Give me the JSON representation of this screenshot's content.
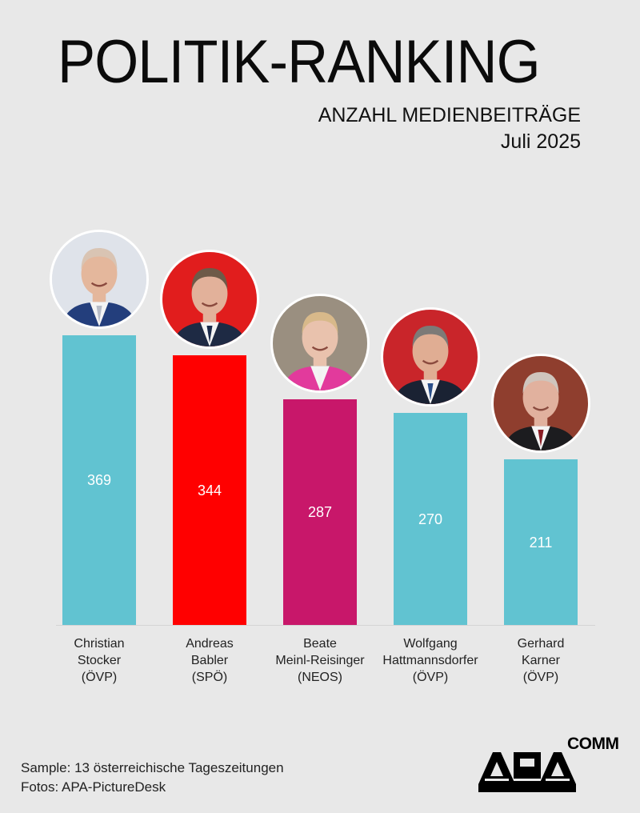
{
  "header": {
    "title": "POLITIK-RANKING",
    "subtitle": "ANZAHL MEDIENBEITRÄGE",
    "period": "Juli 2025"
  },
  "colors": {
    "background": "#e8e8e8",
    "OEVP": "#61c3d1",
    "SPOE": "#ff0000",
    "NEOS": "#c8176a",
    "text": "#111111"
  },
  "bars": [
    {
      "value": "369",
      "first": "Christian",
      "last": "Stocker",
      "party": "(ÖVP)",
      "color": "#61c3d1",
      "photo_bg": "#dfe3ea",
      "suit": "#233e7c",
      "skin": "#e4b79c",
      "hair": "#d9c4b3",
      "tie": "#b7bcc7"
    },
    {
      "value": "344",
      "first": "Andreas",
      "last": "Babler",
      "party": "(SPÖ)",
      "color": "#ff0000",
      "photo_bg": "#e11d1d",
      "suit": "#1e2a44",
      "skin": "#e2b19a",
      "hair": "#6e5a48",
      "tie": "#1b2a4a"
    },
    {
      "value": "287",
      "first": "Beate",
      "last": "Meinl-Reisinger",
      "party": "(NEOS)",
      "color": "#c8176a",
      "photo_bg": "#9a8f80",
      "suit": "#e23a9c",
      "skin": "#e9c2ad",
      "hair": "#d8b98a",
      "tie": "#f2f2f2"
    },
    {
      "value": "270",
      "first": "Wolfgang",
      "last": "Hattmannsdorfer",
      "party": "(ÖVP)",
      "color": "#61c3d1",
      "photo_bg": "#c9252a",
      "suit": "#1a2233",
      "skin": "#e0ad93",
      "hair": "#7d7a77",
      "tie": "#2a4f8a"
    },
    {
      "value": "211",
      "first": "Gerhard",
      "last": "Karner",
      "party": "(ÖVP)",
      "color": "#61c3d1",
      "photo_bg": "#8f3e2e",
      "suit": "#1c1c1f",
      "skin": "#e1b19e",
      "hair": "#cfc5bd",
      "tie": "#8a1d25"
    }
  ],
  "footer": {
    "sample": "Sample: 13 österreichische Tageszeitungen",
    "photos": "Fotos: APA-PictureDesk"
  },
  "logo": {
    "main": "APA",
    "suffix": "COMM"
  },
  "chart_data": {
    "type": "bar",
    "title": "POLITIK-RANKING",
    "subtitle": "ANZAHL MEDIENBEITRÄGE, Juli 2025",
    "categories": [
      "Christian Stocker (ÖVP)",
      "Andreas Babler (SPÖ)",
      "Beate Meinl-Reisinger (NEOS)",
      "Wolfgang Hattmannsdorfer (ÖVP)",
      "Gerhard Karner (ÖVP)"
    ],
    "values": [
      369,
      344,
      287,
      270,
      211
    ],
    "bar_colors": [
      "#61c3d1",
      "#ff0000",
      "#c8176a",
      "#61c3d1",
      "#61c3d1"
    ],
    "xlabel": "",
    "ylabel": "Anzahl Medienbeiträge",
    "ylim": [
      0,
      369
    ],
    "grid": false,
    "legend": "none",
    "data_labels": "inside bars",
    "annotations": [
      "Sample: 13 österreichische Tageszeitungen",
      "Fotos: APA-PictureDesk"
    ]
  }
}
